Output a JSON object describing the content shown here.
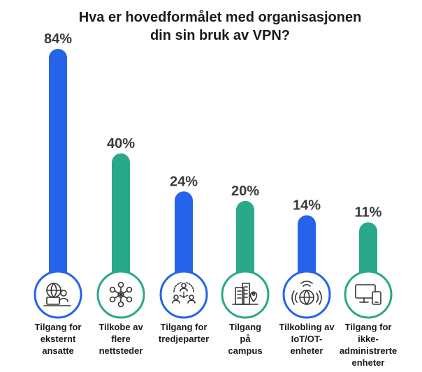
{
  "chart_data": {
    "type": "bar",
    "title_lines": [
      "Hva er hovedformålet med organisasjonen",
      "din sin bruk av VPN?"
    ],
    "categories": [
      [
        "Tilgang for",
        "eksternt",
        "ansatte"
      ],
      [
        "Tilkobe av",
        "flere",
        "nettsteder"
      ],
      [
        "Tilgang for",
        "tredjeparter"
      ],
      [
        "Tilgang",
        "på",
        "campus"
      ],
      [
        "Tilkobling av",
        "IoT/OT-",
        "enheter"
      ],
      [
        "Tilgang for",
        "ikke-",
        "administrerte",
        "enheter"
      ]
    ],
    "values": [
      84,
      40,
      24,
      20,
      14,
      11
    ],
    "value_labels": [
      "84%",
      "40%",
      "24%",
      "20%",
      "14%",
      "11%"
    ],
    "icons": [
      "remote-worker-icon",
      "network-nodes-icon",
      "third-party-people-icon",
      "campus-buildings-icon",
      "iot-globe-icon",
      "devices-icon"
    ],
    "bar_colors": [
      "#2563eb",
      "#2aa88a",
      "#2563eb",
      "#2aa88a",
      "#2563eb",
      "#2aa88a"
    ],
    "value_label_color": "#3a3a3a",
    "ylim": [
      0,
      84
    ],
    "grid": false
  }
}
